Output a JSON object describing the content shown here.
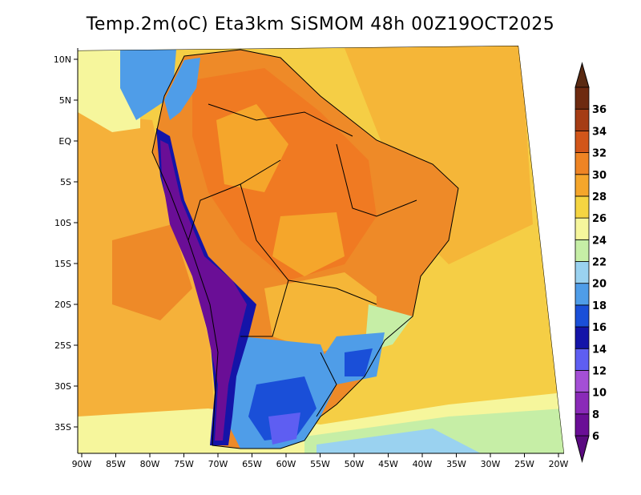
{
  "title": "Temp.2m(oC) Eta3km SiSMOM 48h 00Z19OCT2025",
  "map": {
    "lon_ticks": [
      "90W",
      "85W",
      "80W",
      "75W",
      "70W",
      "65W",
      "60W",
      "55W",
      "50W",
      "45W",
      "40W",
      "35W",
      "30W",
      "25W",
      "20W"
    ],
    "lat_ticks": [
      "10N",
      "5N",
      "EQ",
      "5S",
      "10S",
      "15S",
      "20S",
      "25S",
      "30S",
      "35S"
    ]
  },
  "colorbar": {
    "levels": [
      {
        "label": "6",
        "color": "#6a0e96"
      },
      {
        "label": "8",
        "color": "#8a2ab8"
      },
      {
        "label": "10",
        "color": "#a44fd6"
      },
      {
        "label": "12",
        "color": "#5e5ef2"
      },
      {
        "label": "14",
        "color": "#1414a8"
      },
      {
        "label": "16",
        "color": "#1a4fd8"
      },
      {
        "label": "18",
        "color": "#4f9de8"
      },
      {
        "label": "20",
        "color": "#9ad2f0"
      },
      {
        "label": "22",
        "color": "#c6eea6"
      },
      {
        "label": "24",
        "color": "#f6f69c"
      },
      {
        "label": "26",
        "color": "#f5d542"
      },
      {
        "label": "28",
        "color": "#f5a62b"
      },
      {
        "label": "30",
        "color": "#ee8424"
      },
      {
        "label": "32",
        "color": "#d2561a"
      },
      {
        "label": "34",
        "color": "#a53c14"
      },
      {
        "label": "36",
        "color": "#6e2a10"
      }
    ],
    "min_color": "#5a0a80",
    "max_color": "#5a2a12"
  }
}
